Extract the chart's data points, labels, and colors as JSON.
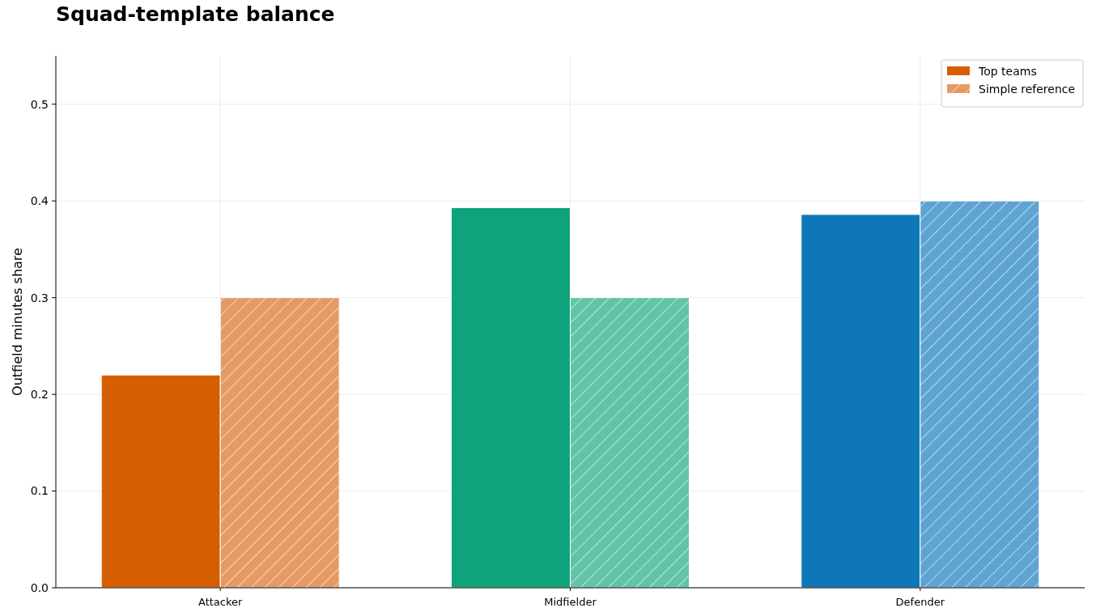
{
  "chart_data": {
    "type": "bar",
    "title": "Squad-template balance",
    "ylabel": "Outfield minutes share",
    "categories": [
      "Attacker",
      "Midfielder",
      "Defender"
    ],
    "series": [
      {
        "name": "Top teams",
        "color": "#d55e00",
        "colors": [
          "#d55e00",
          "#0ea37a",
          "#0e77b8"
        ],
        "values": [
          0.22,
          0.393,
          0.386
        ]
      },
      {
        "name": "Simple reference",
        "color": "#e69a63",
        "colors": [
          "#e69a63",
          "#61c4a7",
          "#5ea4d1"
        ],
        "values": [
          0.3,
          0.3,
          0.4
        ]
      }
    ],
    "ylim": [
      0,
      0.55
    ],
    "yticks": [
      {
        "value": 0,
        "label": "0.0"
      },
      0.1,
      0.2,
      0.3,
      0.4,
      0.5
    ],
    "grid": true,
    "legend": "top right"
  }
}
